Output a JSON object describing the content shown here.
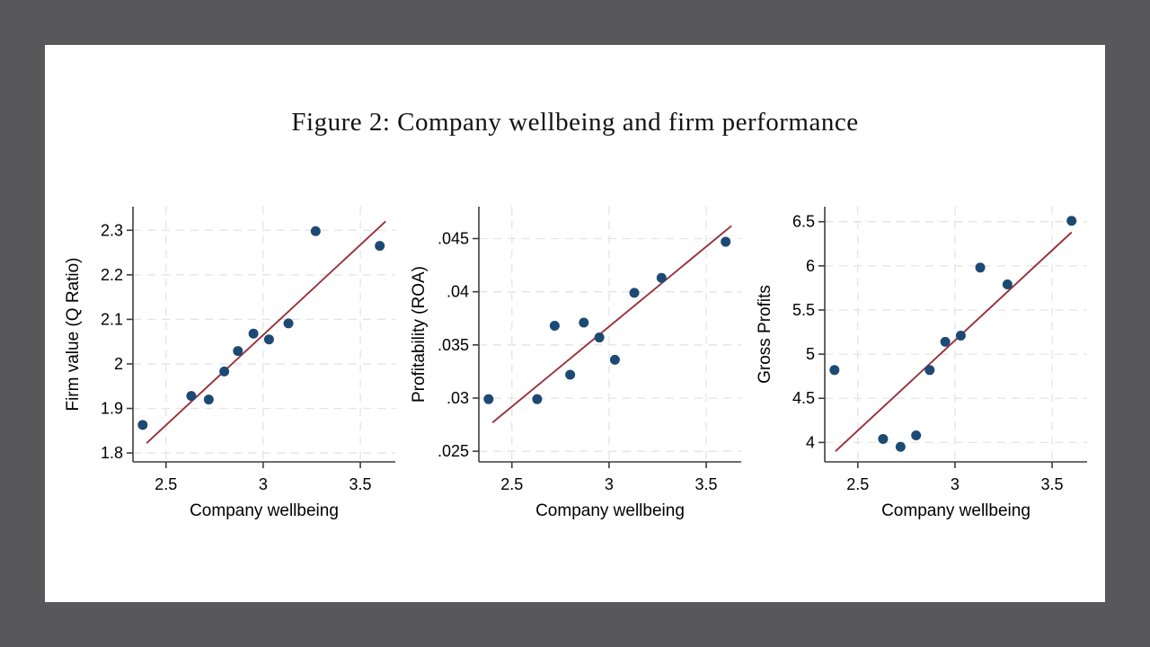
{
  "title": "Figure 2: Company wellbeing and firm performance",
  "colors": {
    "outer_background": "#58585a",
    "slide_background": "#ffffff",
    "marker": "#1c4a74",
    "fit_line": "#963139",
    "grid": "#e4e4e4",
    "axis": "#3d3d3d",
    "text": "#000000"
  },
  "chart_data": [
    {
      "type": "scatter",
      "xlabel": "Company wellbeing",
      "ylabel": "Firm value (Q Ratio)",
      "xlim": [
        2.33,
        3.68
      ],
      "ylim": [
        1.78,
        2.353
      ],
      "xticks": [
        2.5,
        3,
        3.5
      ],
      "xtick_labels": [
        "2.5",
        "3",
        "3.5"
      ],
      "yticks": [
        1.8,
        1.9,
        2,
        2.1,
        2.2,
        2.3
      ],
      "ytick_labels": [
        "1.8",
        "1.9",
        "2",
        "2.1",
        "2.2",
        "2.3"
      ],
      "grid": "both-dashed",
      "x": [
        2.38,
        2.63,
        2.72,
        2.8,
        2.87,
        2.95,
        3.03,
        3.13,
        3.27,
        3.6
      ],
      "y": [
        1.863,
        1.928,
        1.92,
        1.983,
        2.029,
        2.068,
        2.055,
        2.091,
        2.298,
        2.265
      ],
      "fit_line": {
        "x1": 2.4,
        "y1": 1.822,
        "x2": 3.63,
        "y2": 2.32
      }
    },
    {
      "type": "scatter",
      "xlabel": "Company wellbeing",
      "ylabel": "Profitability (ROA)",
      "xlim": [
        2.33,
        3.68
      ],
      "ylim": [
        0.024,
        0.048
      ],
      "xticks": [
        2.5,
        3,
        3.5
      ],
      "xtick_labels": [
        "2.5",
        "3",
        "3.5"
      ],
      "yticks": [
        0.025,
        0.03,
        0.035,
        0.04,
        0.045
      ],
      "ytick_labels": [
        ".025",
        ".03",
        ".035",
        ".04",
        ".045"
      ],
      "grid": "both-dashed",
      "x": [
        2.38,
        2.63,
        2.72,
        2.8,
        2.87,
        2.95,
        3.03,
        3.13,
        3.27,
        3.6
      ],
      "y": [
        0.0299,
        0.0299,
        0.0368,
        0.0322,
        0.0371,
        0.0357,
        0.0336,
        0.0399,
        0.0413,
        0.0447
      ],
      "fit_line": {
        "x1": 2.4,
        "y1": 0.0277,
        "x2": 3.63,
        "y2": 0.0462
      }
    },
    {
      "type": "scatter",
      "xlabel": "Company wellbeing",
      "ylabel": "Gross Profits",
      "xlim": [
        2.33,
        3.68
      ],
      "ylim": [
        3.78,
        6.67
      ],
      "xticks": [
        2.5,
        3,
        3.5
      ],
      "xtick_labels": [
        "2.5",
        "3",
        "3.5"
      ],
      "yticks": [
        4,
        4.5,
        5,
        5.5,
        6,
        6.5
      ],
      "ytick_labels": [
        "4",
        "4.5",
        "5",
        "5.5",
        "6",
        "6.5"
      ],
      "grid": "both-dashed",
      "x": [
        2.38,
        2.63,
        2.72,
        2.8,
        2.87,
        2.95,
        3.03,
        3.13,
        3.27,
        3.6
      ],
      "y": [
        4.82,
        4.04,
        3.95,
        4.08,
        4.82,
        5.14,
        5.21,
        5.98,
        5.79,
        6.51
      ],
      "fit_line": {
        "x1": 2.385,
        "y1": 3.9,
        "x2": 3.6,
        "y2": 6.38
      }
    }
  ]
}
